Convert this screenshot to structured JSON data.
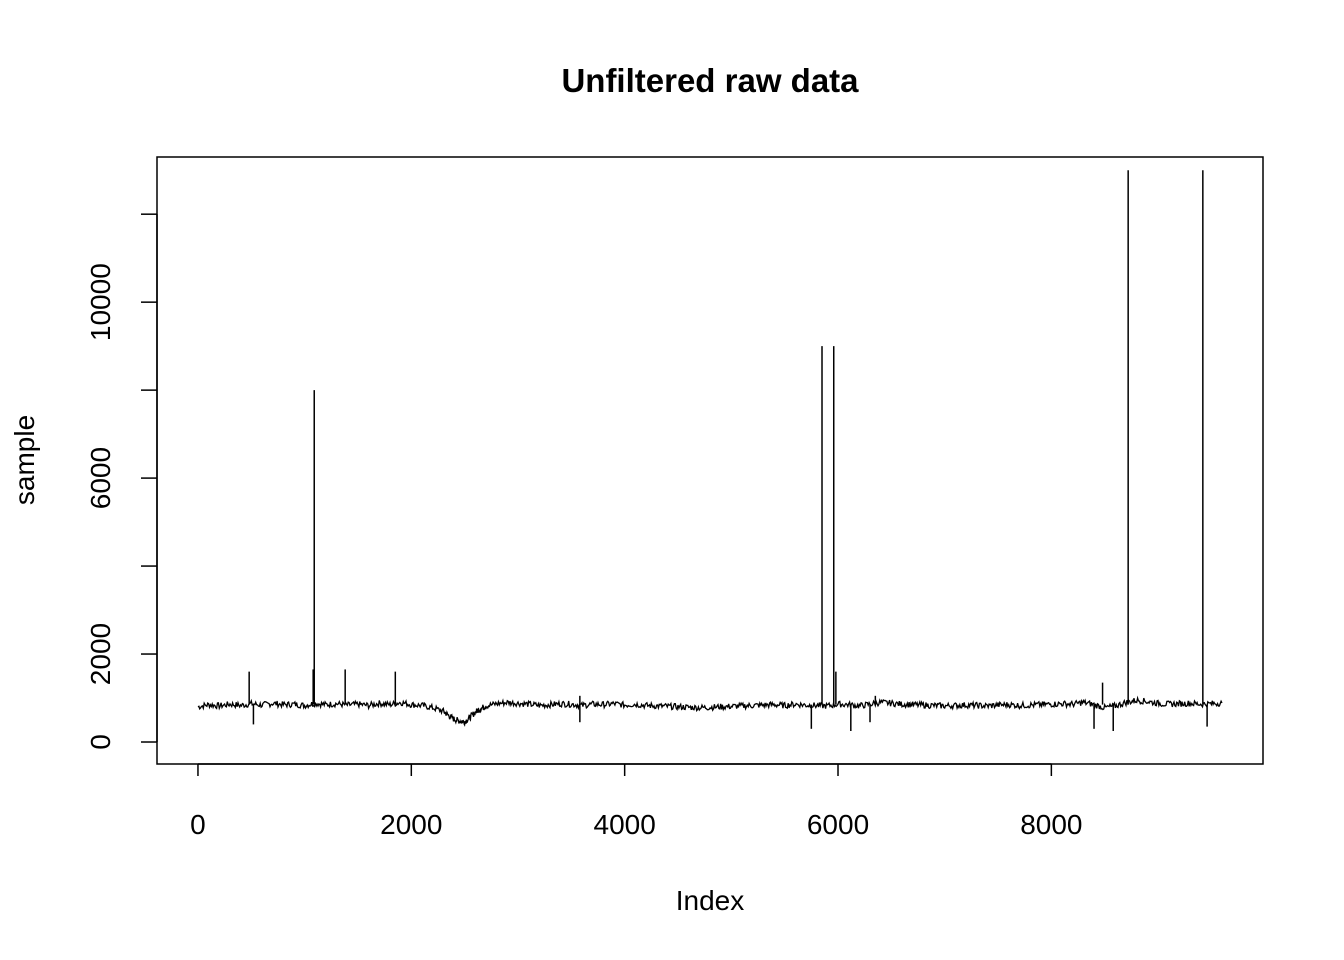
{
  "chart_data": {
    "type": "line",
    "title": "Unfiltered raw data",
    "xlabel": "Index",
    "ylabel": "sample",
    "xlim": [
      -384,
      9984
    ],
    "ylim": [
      -500,
      13300
    ],
    "x_ticks": [
      0,
      2000,
      4000,
      6000,
      8000
    ],
    "x_tick_labels": [
      "0",
      "2000",
      "4000",
      "6000",
      "8000"
    ],
    "y_ticks": [
      0,
      2000,
      4000,
      6000,
      8000,
      10000,
      12000
    ],
    "y_tick_labels": [
      "0",
      "2000",
      "",
      "6000",
      "",
      "10000",
      ""
    ],
    "line_color": "#000000",
    "series": [
      {
        "x": [
          0,
          100,
          200,
          300,
          400,
          500,
          600,
          700,
          800,
          900,
          1000,
          1100,
          1200,
          1300,
          1400,
          1500,
          1600,
          1700,
          1800,
          1900,
          2000,
          2100,
          2200,
          2300,
          2350,
          2400,
          2450,
          2500,
          2550,
          2600,
          2650,
          2700,
          2800,
          2900,
          3000,
          3100,
          3200,
          3300,
          3400,
          3500,
          3600,
          3700,
          3800,
          3900,
          4000,
          4100,
          4200,
          4300,
          4400,
          4500,
          4600,
          4700,
          4800,
          4900,
          5000,
          5100,
          5200,
          5300,
          5400,
          5500,
          5600,
          5700,
          5800,
          5900,
          6000,
          6100,
          6200,
          6300,
          6400,
          6500,
          6600,
          6700,
          6800,
          6900,
          7000,
          7100,
          7200,
          7300,
          7400,
          7500,
          7600,
          7700,
          7800,
          7900,
          8000,
          8100,
          8200,
          8300,
          8400,
          8500,
          8600,
          8700,
          8800,
          8900,
          9000,
          9100,
          9200,
          9300,
          9400,
          9500,
          9600
        ],
        "values": [
          800,
          850,
          820,
          860,
          830,
          870,
          840,
          880,
          850,
          860,
          830,
          880,
          850,
          870,
          840,
          860,
          830,
          880,
          850,
          900,
          850,
          830,
          780,
          700,
          600,
          520,
          480,
          460,
          560,
          680,
          760,
          820,
          870,
          900,
          880,
          860,
          830,
          850,
          870,
          860,
          830,
          860,
          850,
          870,
          840,
          860,
          830,
          820,
          810,
          800,
          790,
          780,
          790,
          800,
          810,
          820,
          830,
          840,
          850,
          830,
          860,
          840,
          830,
          820,
          860,
          850,
          820,
          860,
          900,
          880,
          860,
          850,
          840,
          830,
          820,
          830,
          840,
          830,
          820,
          840,
          850,
          830,
          840,
          850,
          860,
          870,
          860,
          900,
          850,
          780,
          820,
          900,
          950,
          920,
          880,
          860,
          870,
          880,
          860,
          870,
          890
        ]
      }
    ],
    "spikes": [
      {
        "x": 480,
        "y": 1600
      },
      {
        "x": 520,
        "y": 400
      },
      {
        "x": 1080,
        "y": 1650
      },
      {
        "x": 1090,
        "y": 8000
      },
      {
        "x": 1380,
        "y": 1650
      },
      {
        "x": 1850,
        "y": 1600
      },
      {
        "x": 3580,
        "y": 1050
      },
      {
        "x": 3580,
        "y": 450
      },
      {
        "x": 5750,
        "y": 300
      },
      {
        "x": 5850,
        "y": 9000
      },
      {
        "x": 5960,
        "y": 9000
      },
      {
        "x": 5980,
        "y": 1600
      },
      {
        "x": 6120,
        "y": 250
      },
      {
        "x": 6300,
        "y": 450
      },
      {
        "x": 6350,
        "y": 1050
      },
      {
        "x": 8400,
        "y": 300
      },
      {
        "x": 8480,
        "y": 1350
      },
      {
        "x": 8580,
        "y": 250
      },
      {
        "x": 8720,
        "y": 13000
      },
      {
        "x": 9420,
        "y": 13000
      },
      {
        "x": 9460,
        "y": 350
      }
    ]
  }
}
